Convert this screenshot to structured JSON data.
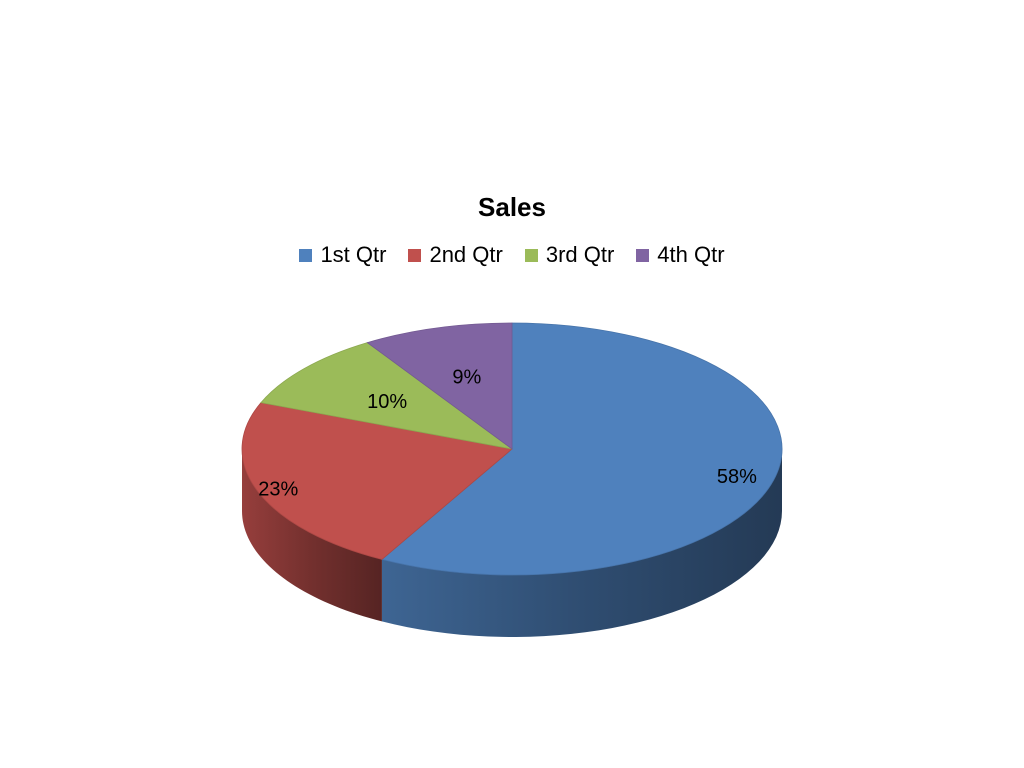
{
  "chart_data": {
    "type": "pie",
    "title": "Sales",
    "categories": [
      "1st Qtr",
      "2nd Qtr",
      "3rd Qtr",
      "4th Qtr"
    ],
    "values": [
      58,
      23,
      10,
      9
    ],
    "data_labels": [
      "58%",
      "23%",
      "10%",
      "9%"
    ],
    "colors": [
      "#4F81BD",
      "#C0504D",
      "#9BBB59",
      "#8064A2"
    ],
    "legend_position": "top",
    "style": "3d"
  }
}
